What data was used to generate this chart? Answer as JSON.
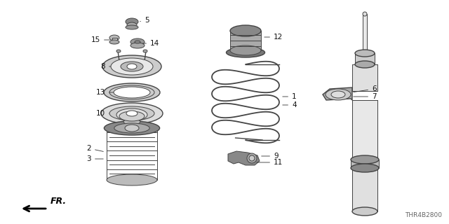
{
  "bg_color": "#ffffff",
  "line_color": "#444444",
  "diagram_code": "THR4B2800",
  "fr_label": "FR.",
  "figsize": [
    6.4,
    3.2
  ],
  "dpi": 100
}
